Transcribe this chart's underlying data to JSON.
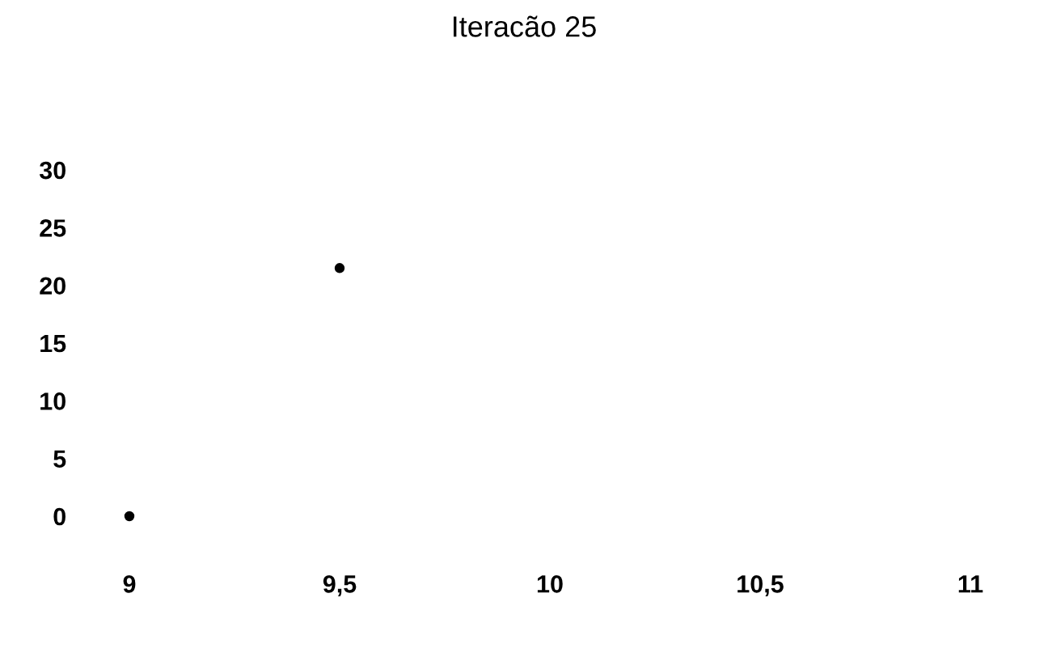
{
  "chart_data": {
    "type": "scatter",
    "title": "Iteracão 25",
    "x": [
      9,
      9.5
    ],
    "series": [
      {
        "color": "#000000",
        "values": [
          0,
          21.5
        ]
      }
    ],
    "marker": "circle",
    "grid": false,
    "legend": false,
    "xlim": [
      9,
      11
    ],
    "ylim": [
      0,
      30
    ],
    "xticks": [
      9,
      {
        "value": 9.5,
        "label": "9,5"
      },
      10,
      {
        "value": 10.5,
        "label": "10,5"
      },
      11
    ],
    "yticks": [
      0,
      5,
      10,
      15,
      20,
      25,
      30
    ]
  }
}
